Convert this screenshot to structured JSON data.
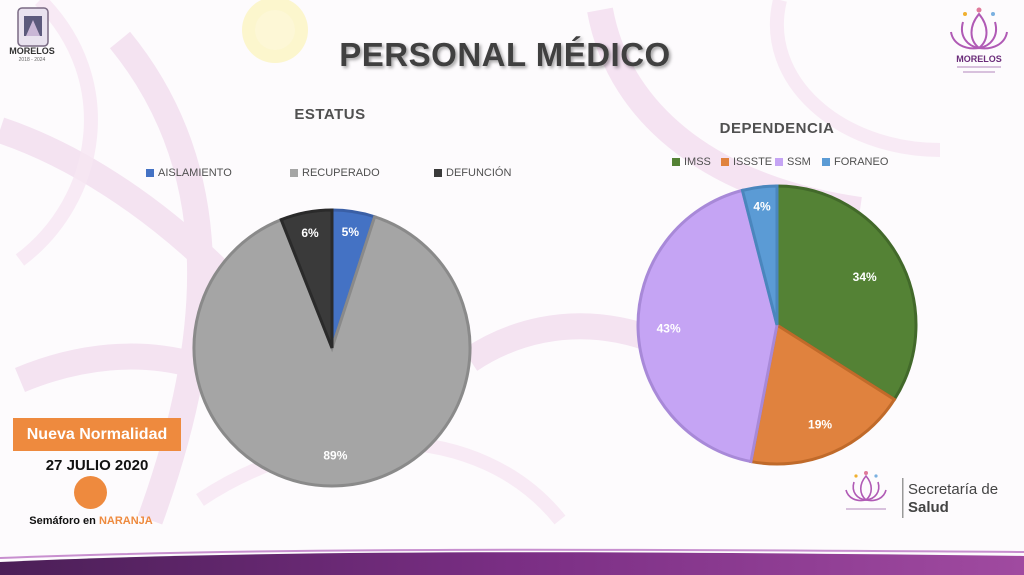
{
  "page": {
    "title": "PERSONAL MÉDICO"
  },
  "logos": {
    "left_text": "MORELOS",
    "left_years": "2018 - 2024",
    "right_text": "MORELOS"
  },
  "footer": {
    "secretaria_line1": "Secretaría de",
    "secretaria_line2": "Salud",
    "badge": "Nueva Normalidad",
    "date": "27 JULIO 2020",
    "semaforo_prefix": "Semáforo en ",
    "semaforo_color_word": "NARANJA",
    "semaforo_color": "#ee8a3e"
  },
  "chart_data": [
    {
      "type": "pie",
      "title": "ESTATUS",
      "categories": [
        "AISLAMIENTO",
        "RECUPERADO",
        "DEFUNCIÓN"
      ],
      "values": [
        5,
        89,
        6
      ],
      "labels": [
        "5%",
        "89%",
        "6%"
      ],
      "colors": [
        "#4472c4",
        "#a5a5a5",
        "#3a3a3a"
      ],
      "legend": "top"
    },
    {
      "type": "pie",
      "title": "DEPENDENCIA",
      "categories": [
        "IMSS",
        "ISSSTE",
        "SSM",
        "FORANEO"
      ],
      "values": [
        34,
        19,
        43,
        4
      ],
      "labels": [
        "34%",
        "19%",
        "43%",
        "4%"
      ],
      "colors": [
        "#548235",
        "#e0823e",
        "#c5a4f4",
        "#5b9bd5"
      ],
      "legend": "top"
    }
  ]
}
